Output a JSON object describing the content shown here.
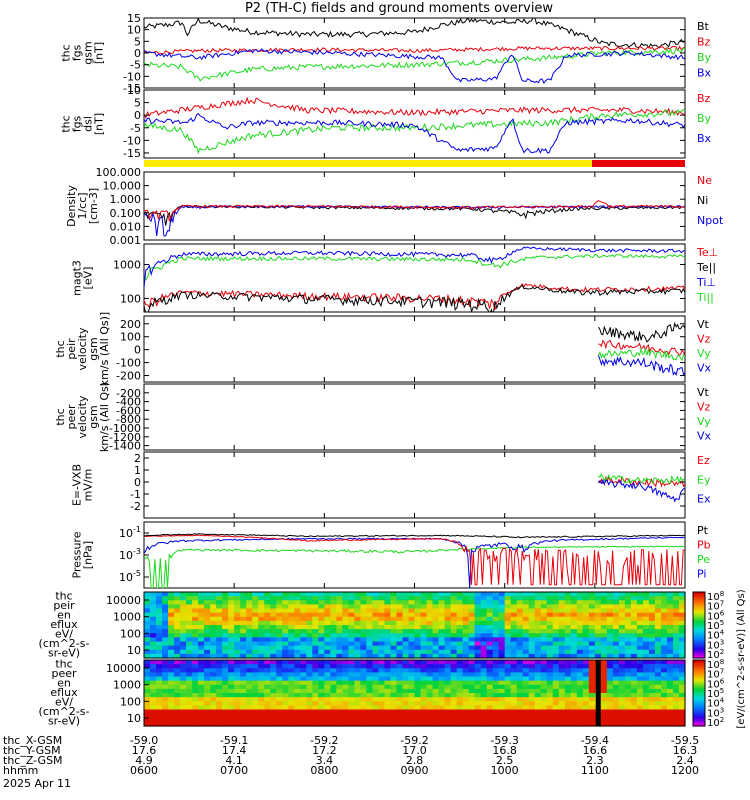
{
  "title": "P2 (TH-C) fields and ground moments overview",
  "colors": {
    "black": "#000000",
    "red": "#e8000b",
    "green": "#1ed81e",
    "blue": "#0000e6",
    "yellow": "#ffee00"
  },
  "chart_data": [
    {
      "id": "fgs",
      "type": "line",
      "ylabel_lines": [
        "thc",
        "fgs",
        "gsm",
        "[nT]"
      ],
      "ylim": [
        -15,
        15
      ],
      "yticks": [
        15,
        10,
        5,
        0,
        -5,
        -10,
        -15
      ],
      "series": [
        {
          "name": "Bt",
          "color": "black"
        },
        {
          "name": "Bz",
          "color": "red"
        },
        {
          "name": "By",
          "color": "green"
        },
        {
          "name": "Bx",
          "color": "blue"
        }
      ]
    },
    {
      "id": "fgs_dsl",
      "type": "line",
      "ylabel_lines": [
        "thc",
        "fgs",
        "dsl",
        "[nT]"
      ],
      "ylim": [
        -17,
        10
      ],
      "yticks": [
        10,
        5,
        0,
        -5,
        -10,
        -15
      ],
      "series": [
        {
          "name": "Bz",
          "color": "red"
        },
        {
          "name": "By",
          "color": "green"
        },
        {
          "name": "Bx",
          "color": "blue"
        }
      ]
    },
    {
      "id": "density",
      "type": "line",
      "scale": "log",
      "ylabel_lines": [
        "Density",
        "1/cc]",
        "[cm-3]"
      ],
      "ylim": [
        0.001,
        100
      ],
      "yticks": [
        "100.000",
        "10.000",
        "1.000",
        "0.100",
        "0.010",
        "0.001"
      ],
      "series": [
        {
          "name": "Ne",
          "color": "red"
        },
        {
          "name": "Ni",
          "color": "black"
        },
        {
          "name": "Npot",
          "color": "blue"
        }
      ]
    },
    {
      "id": "temperature",
      "type": "line",
      "scale": "log",
      "ylabel_lines": [
        "magt3",
        "[eV]"
      ],
      "ylim": [
        40,
        4000
      ],
      "yticks": [
        "1000",
        "100"
      ],
      "series": [
        {
          "name": "Te⊥",
          "color": "red"
        },
        {
          "name": "Te||",
          "color": "black"
        },
        {
          "name": "Ti⊥",
          "color": "blue"
        },
        {
          "name": "Ti||",
          "color": "green"
        }
      ]
    },
    {
      "id": "peir_velocity",
      "type": "line",
      "ylabel_lines": [
        "thc",
        "peir",
        "velocity",
        "gsm",
        "km/s (All Qs)]"
      ],
      "ylim": [
        -250,
        260
      ],
      "yticks": [
        200,
        100,
        0,
        -100,
        -200
      ],
      "series": [
        {
          "name": "Vt",
          "color": "black"
        },
        {
          "name": "Vz",
          "color": "red"
        },
        {
          "name": "Vy",
          "color": "green"
        },
        {
          "name": "Vx",
          "color": "blue"
        }
      ]
    },
    {
      "id": "peer_velocity",
      "type": "line",
      "ylabel_lines": [
        "thc",
        "peer",
        "velocity",
        "gsm",
        "km/s (All Qs)"
      ],
      "ylim": [
        -1500,
        0
      ],
      "yticks": [
        -200,
        -400,
        -600,
        -800,
        -1000,
        -1200,
        -1400
      ],
      "series": [
        {
          "name": "Vt",
          "color": "black"
        },
        {
          "name": "Vz",
          "color": "red"
        },
        {
          "name": "Vy",
          "color": "green"
        },
        {
          "name": "Vx",
          "color": "blue"
        }
      ]
    },
    {
      "id": "efield",
      "type": "line",
      "ylabel_lines": [
        "E=-VXB",
        "mV/m"
      ],
      "ylim": [
        -3,
        2.5
      ],
      "yticks": [
        2,
        1,
        0,
        -1,
        -2
      ],
      "series": [
        {
          "name": "Ez",
          "color": "red"
        },
        {
          "name": "Ey",
          "color": "green"
        },
        {
          "name": "Ex",
          "color": "blue"
        }
      ]
    },
    {
      "id": "pressure",
      "type": "line",
      "scale": "log",
      "ylabel_lines": [
        "Pressure",
        "[nPa]"
      ],
      "ylim": [
        1e-06,
        1
      ],
      "ytick_exps": [
        -1,
        -3,
        -5
      ],
      "series": [
        {
          "name": "Pt",
          "color": "black"
        },
        {
          "name": "Pb",
          "color": "red"
        },
        {
          "name": "Pe",
          "color": "green"
        },
        {
          "name": "Pi",
          "color": "blue"
        }
      ]
    },
    {
      "id": "peir_spec",
      "type": "heatmap",
      "ylabel_lines": [
        "thc",
        "peir",
        "en",
        "eflux",
        "eV/",
        "(cm^2-s-",
        "sr-eV)"
      ],
      "yticks": [
        "10000",
        "1000",
        "100",
        "10"
      ]
    },
    {
      "id": "peer_spec",
      "type": "heatmap",
      "ylabel_lines": [
        "thc",
        "peer",
        "en",
        "eflux",
        "eV/",
        "(cm^2-s-",
        "sr-eV)"
      ],
      "yticks": [
        "10000",
        "1000",
        "100",
        "10"
      ]
    }
  ],
  "colorbar": {
    "label": "[eV/(cm^2-s-sr-eV)] (All Qs)",
    "top_exps": [
      8,
      7,
      6,
      5,
      4,
      3,
      2
    ],
    "bottom_exps": [
      8,
      7,
      6,
      5,
      4,
      3,
      2
    ]
  },
  "ephemeris": {
    "rows": [
      {
        "label": "thc_X-GSM",
        "values": [
          "-59.0",
          "-59.1",
          "-59.2",
          "-59.2",
          "-59.3",
          "-59.4",
          "-59.5"
        ]
      },
      {
        "label": "thc_Y-GSM",
        "values": [
          "17.6",
          "17.4",
          "17.2",
          "17.0",
          "16.8",
          "16.6",
          "16.3"
        ]
      },
      {
        "label": "thc_Z-GSM",
        "values": [
          "4.9",
          "4.1",
          "3.4",
          "2.8",
          "2.5",
          "2.3",
          "2.4"
        ]
      },
      {
        "label": "hhmm",
        "values": [
          "0600",
          "0700",
          "0800",
          "0900",
          "1000",
          "1100",
          "1200"
        ]
      }
    ],
    "date": "2025 Apr 11"
  }
}
